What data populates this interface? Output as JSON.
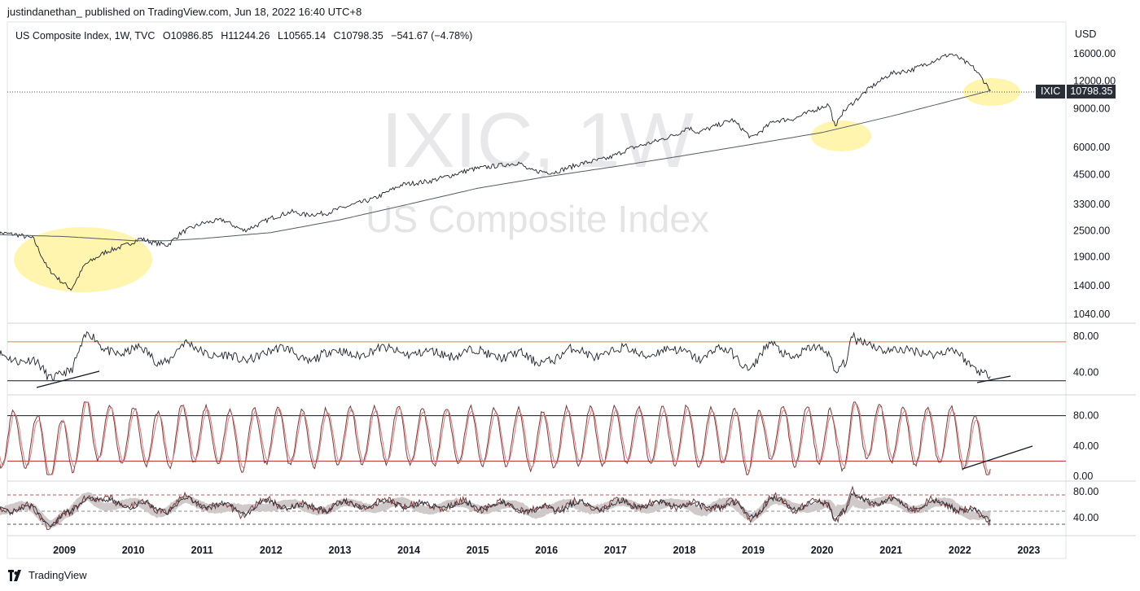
{
  "publish_line": "justindanethan_ published on TradingView.com, Jun 18, 2022 16:40 UTC+8",
  "legend": {
    "name": "US Composite Index, 1W, TVC",
    "open": "O10986.85",
    "high": "H11244.26",
    "low": "L10565.14",
    "close": "C10798.35",
    "change": "−541.67 (−4.78%)"
  },
  "currency": "USD",
  "watermark": {
    "symbol": "IXIC, 1W",
    "description": "US Composite Index"
  },
  "last_price": {
    "symbol": "IXIC",
    "value": "10798.35"
  },
  "footer_brand": "TradingView",
  "colors": {
    "price": "#1e222d",
    "ma": "#555a64",
    "highlight": "#fff3a0",
    "osc": "#7a3b3b",
    "osc_signal": "#d98080",
    "band": "#d8d4d4"
  },
  "chart_data": [
    {
      "type": "line",
      "title": "US Composite Index, 1W, TVC",
      "y_scale": "log",
      "ylim": [
        1040,
        17000
      ],
      "y_ticks": [
        "16000.00",
        "12000.00",
        "9000.00",
        "6000.00",
        "4500.00",
        "3300.00",
        "2500.00",
        "1900.00",
        "1400.00",
        "1040.00"
      ],
      "x_ticks": [
        "2009",
        "2010",
        "2011",
        "2012",
        "2013",
        "2014",
        "2015",
        "2016",
        "2017",
        "2018",
        "2019",
        "2020",
        "2021",
        "2022",
        "2023"
      ],
      "series": [
        {
          "x": [
            2008.0,
            2008.3,
            2008.55,
            2008.75,
            2008.92,
            2009.1,
            2009.3,
            2009.6,
            2009.9,
            2010.1,
            2010.3,
            2010.5,
            2010.7,
            2011.0,
            2011.3,
            2011.6,
            2011.8,
            2012.0,
            2012.3,
            2012.5,
            2012.8,
            2013.0,
            2013.5,
            2013.9,
            2014.3,
            2014.6,
            2014.9,
            2015.3,
            2015.6,
            2015.75,
            2016.1,
            2016.5,
            2016.9,
            2017.2,
            2017.6,
            2017.9,
            2018.05,
            2018.2,
            2018.7,
            2018.98,
            2019.3,
            2019.6,
            2019.9,
            2020.1,
            2020.2,
            2020.25,
            2020.4,
            2020.7,
            2021.0,
            2021.3,
            2021.6,
            2021.87,
            2022.0,
            2022.2,
            2022.35,
            2022.46
          ],
          "values": [
            2450,
            2400,
            2300,
            1700,
            1500,
            1350,
            1750,
            2000,
            2150,
            2300,
            2200,
            2150,
            2450,
            2700,
            2800,
            2500,
            2650,
            2850,
            3050,
            2950,
            3000,
            3150,
            3500,
            4050,
            4200,
            4450,
            4750,
            4950,
            5100,
            4700,
            4600,
            5050,
            5350,
            5900,
            6400,
            6900,
            7400,
            7000,
            8000,
            6600,
            7900,
            8100,
            8900,
            9400,
            7200,
            8300,
            9300,
            11200,
            13000,
            13500,
            14800,
            16000,
            15200,
            13800,
            12000,
            10798
          ]
        },
        {
          "name": "",
          "x": [
            2008.0,
            2009.0,
            2010.0,
            2010.5,
            2011.0,
            2012.0,
            2013.0,
            2014.0,
            2015.0,
            2016.0,
            2017.0,
            2018.0,
            2019.0,
            2020.0,
            2021.0,
            2022.0,
            2022.46
          ],
          "values": [
            2400,
            2350,
            2250,
            2250,
            2300,
            2450,
            2800,
            3300,
            3900,
            4400,
            4900,
            5500,
            6200,
            7000,
            8300,
            10000,
            10900
          ]
        }
      ]
    },
    {
      "type": "line",
      "y_ticks": [
        "80.00",
        "40.00"
      ],
      "ylim": [
        20,
        90
      ]
    },
    {
      "type": "line",
      "y_ticks": [
        "80.00",
        "40.00",
        "0.00"
      ],
      "ylim": [
        0,
        100
      ]
    },
    {
      "type": "line",
      "y_ticks": [
        "80.00",
        "40.00"
      ],
      "ylim": [
        20,
        90
      ]
    }
  ]
}
